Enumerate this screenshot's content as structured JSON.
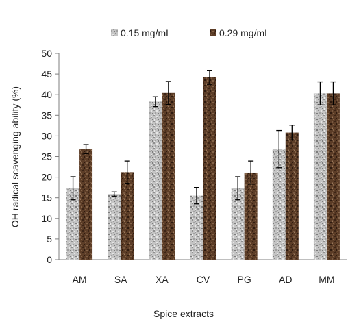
{
  "chart_data": {
    "type": "bar",
    "categories": [
      "AM",
      "SA",
      "XA",
      "CV",
      "PG",
      "AD",
      "MM"
    ],
    "series": [
      {
        "name": "0.15 mg/mL",
        "color": "#b8b8b8",
        "texture": "light-grey-granite",
        "values": [
          17.3,
          15.9,
          38.3,
          15.5,
          17.3,
          26.8,
          40.3
        ],
        "errors": [
          2.8,
          0.5,
          1.2,
          2.0,
          2.8,
          4.5,
          2.8
        ]
      },
      {
        "name": "0.29 mg/mL",
        "color": "#5a3c28",
        "texture": "dark-brown-granite",
        "values": [
          26.8,
          21.2,
          40.4,
          44.2,
          21.1,
          30.8,
          40.3
        ],
        "errors": [
          1.1,
          2.7,
          2.8,
          1.7,
          2.8,
          1.8,
          2.8
        ]
      }
    ],
    "title": "",
    "xlabel": "Spice extracts",
    "ylabel": "OH radical scavenging ability (%)",
    "ylim": [
      0,
      50
    ],
    "yticks": [
      0,
      5,
      10,
      15,
      20,
      25,
      30,
      35,
      40,
      45,
      50
    ],
    "grid": false,
    "legend_position": "top"
  }
}
